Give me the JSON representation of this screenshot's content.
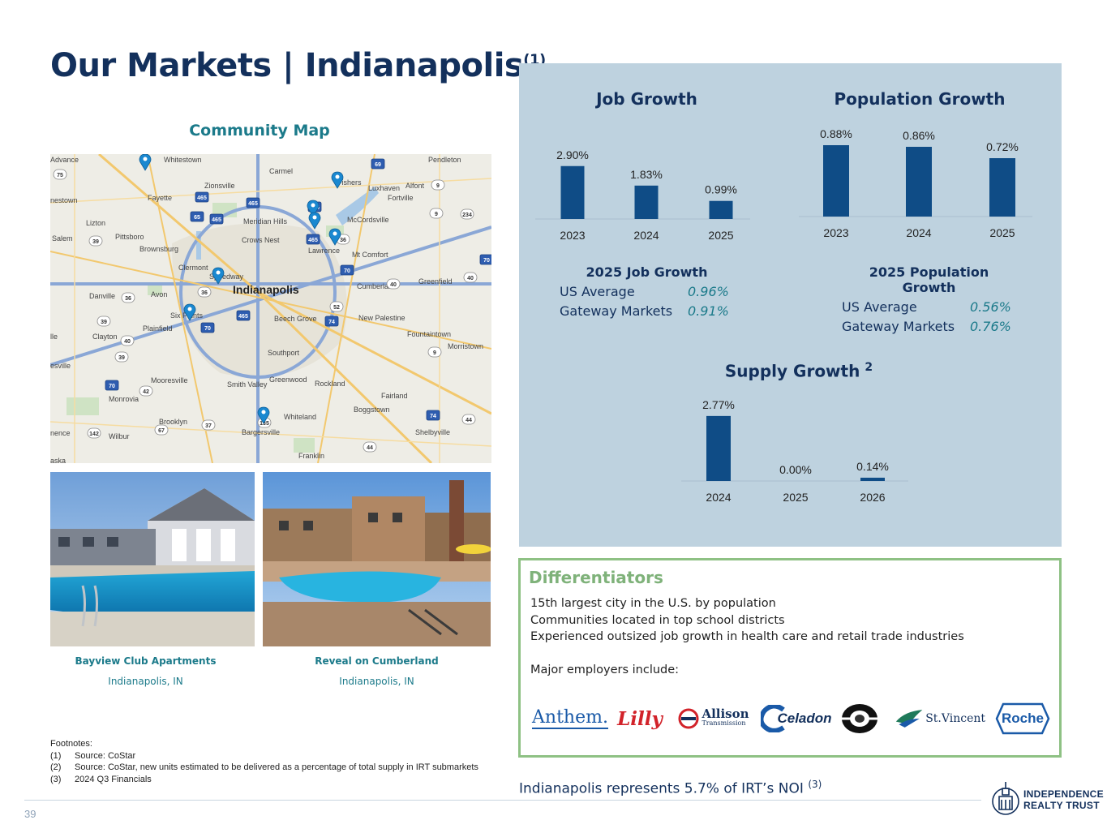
{
  "title": {
    "main": "Our Markets | Indianapolis",
    "sup": "(1)"
  },
  "map": {
    "heading": "Community Map",
    "places": [
      "Advance",
      "Whitestown",
      "Carmel",
      "Pendleton",
      "Zionsville",
      "Fishers",
      "nestown",
      "Fayette",
      "Luxhaven",
      "Alfont",
      "Fortville",
      "Lizton",
      "Meridian Hills",
      "McCordsville",
      "Salem",
      "Pittsboro",
      "Crows Nest",
      "Brownsburg",
      "Lawrence",
      "Mt Comfort",
      "Clermont",
      "Speedway",
      "Indianapolis",
      "Cumberland",
      "Greenfield",
      "Danville",
      "Avon",
      "Six Points",
      "Beech Grove",
      "New Palestine",
      "Plainfield",
      "lle",
      "Clayton",
      "Fountaintown",
      "Morristown",
      "Southport",
      "esville",
      "Mooresville",
      "Smith Valley",
      "Greenwood",
      "Rockland",
      "Monrovia",
      "Fairland",
      "Whiteland",
      "Boggstown",
      "Brooklyn",
      "nence",
      "Wilbur",
      "Bargersville",
      "Shelbyville",
      "Franklin",
      "aska"
    ],
    "shields": [
      "75",
      "465",
      "69",
      "9",
      "465",
      "465",
      "65",
      "465",
      "9",
      "234",
      "465",
      "36",
      "39",
      "70",
      "36",
      "36",
      "70",
      "40",
      "40",
      "52",
      "465",
      "74",
      "70",
      "39",
      "40",
      "9",
      "39",
      "70",
      "42",
      "37",
      "67",
      "135",
      "74",
      "44",
      "142",
      "44"
    ]
  },
  "properties": [
    {
      "name": "Bayview Club Apartments",
      "city": "Indianapolis, IN"
    },
    {
      "name": "Reveal on Cumberland",
      "city": "Indianapolis, IN"
    }
  ],
  "footnotes": {
    "heading": "Footnotes:",
    "items": [
      {
        "num": "(1)",
        "text": "Source: CoStar"
      },
      {
        "num": "(2)",
        "text": "Source: CoStar, new units estimated to be delivered as a percentage of total supply in IRT submarkets"
      },
      {
        "num": "(3)",
        "text": "2024 Q3 Financials"
      }
    ]
  },
  "page_number": "39",
  "colors": {
    "navy": "#13305c",
    "bar": "#0f4c86",
    "teal": "#1b7a8a",
    "panel": "#bed2df",
    "green": "#8ec184"
  },
  "chart_data": [
    {
      "type": "bar",
      "title": "Job Growth",
      "categories": [
        "2023",
        "2024",
        "2025"
      ],
      "values": [
        2.9,
        1.83,
        0.99
      ],
      "labels": [
        "2.90%",
        "1.83%",
        "0.99%"
      ],
      "ylim": [
        0,
        3.2
      ]
    },
    {
      "type": "bar",
      "title": "Population Growth",
      "categories": [
        "2023",
        "2024",
        "2025"
      ],
      "values": [
        0.88,
        0.86,
        0.72
      ],
      "labels": [
        "0.88%",
        "0.86%",
        "0.72%"
      ],
      "ylim": [
        0,
        0.9
      ]
    },
    {
      "type": "bar",
      "title": "Supply Growth",
      "title_sup": "2",
      "categories": [
        "2024",
        "2025",
        "2026"
      ],
      "values": [
        2.77,
        0.0,
        0.14
      ],
      "labels": [
        "2.77%",
        "0.00%",
        "0.14%"
      ],
      "ylim": [
        0,
        2.8
      ]
    }
  ],
  "summaries": {
    "job": {
      "title": "2025 Job Growth",
      "rows": [
        {
          "label": "US Average",
          "value": "0.96%"
        },
        {
          "label": "Gateway Markets",
          "value": "0.91%"
        }
      ]
    },
    "population": {
      "title": "2025 Population Growth",
      "rows": [
        {
          "label": "US Average",
          "value": "0.56%"
        },
        {
          "label": "Gateway Markets",
          "value": "0.76%"
        }
      ]
    }
  },
  "differentiators": {
    "title": "Differentiators",
    "lines": [
      "15th largest city in the U.S. by population",
      "Communities located in top school districts",
      "Experienced outsized job growth in health care and retail trade industries",
      "",
      "Major employers include:"
    ]
  },
  "employers": {
    "anthem": "Anthem.",
    "lilly": "Lilly",
    "allison_top": "Allison",
    "allison_bottom": "Transmission",
    "celadon": "Celadon",
    "stvincent": "St.Vincent",
    "roche": "Roche"
  },
  "noi": {
    "text": "Indianapolis represents 5.7% of IRT’s NOI ",
    "sup": "(3)"
  },
  "logo": {
    "line1": "INDEPENDENCE",
    "line2": "REALTY TRUST"
  }
}
